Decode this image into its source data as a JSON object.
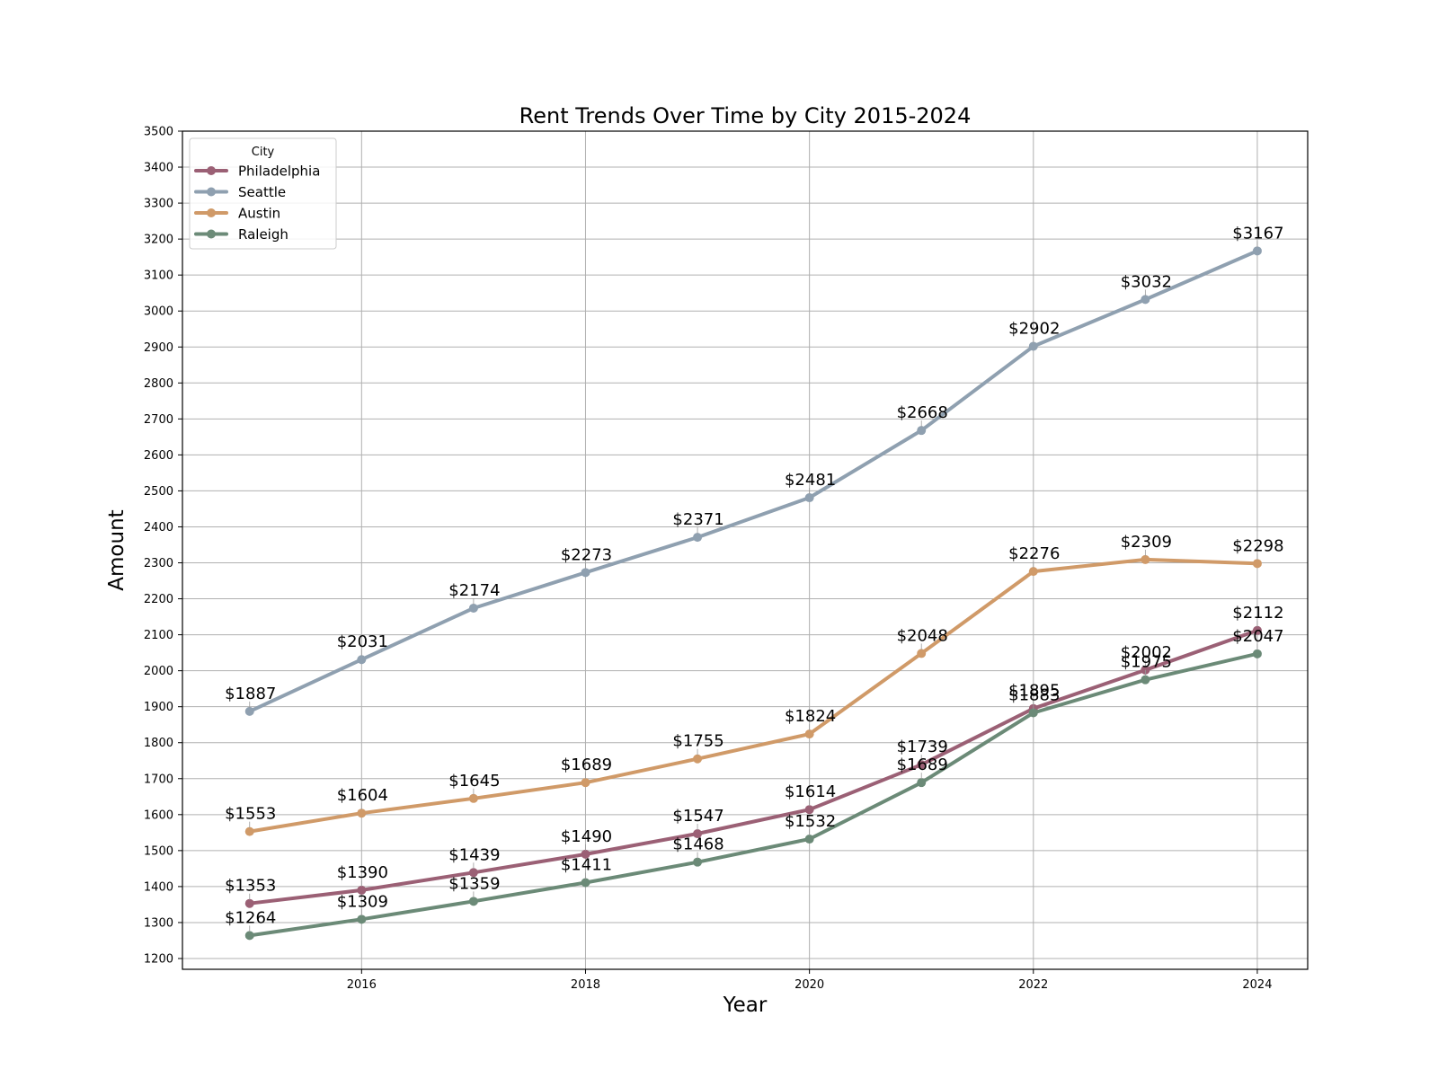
{
  "chart_data": {
    "type": "line",
    "title": "Rent Trends Over Time by City 2015-2024",
    "xlabel": "Year",
    "ylabel": "Amount",
    "x": [
      2015,
      2016,
      2017,
      2018,
      2019,
      2020,
      2021,
      2022,
      2023,
      2024
    ],
    "xticks": [
      2016,
      2018,
      2020,
      2022,
      2024
    ],
    "xlim": [
      2014.4,
      2024.45
    ],
    "yticks": [
      1200,
      1300,
      1400,
      1500,
      1600,
      1700,
      1800,
      1900,
      2000,
      2100,
      2200,
      2300,
      2400,
      2500,
      2600,
      2700,
      2800,
      2900,
      3000,
      3100,
      3200,
      3300,
      3400,
      3500
    ],
    "ylim": [
      1170,
      3500
    ],
    "grid": true,
    "legend": {
      "title": "City",
      "placement": "top-left"
    },
    "value_prefix": "$",
    "series": [
      {
        "name": "Philadelphia",
        "color": "#9b6075",
        "values": [
          1353,
          1390,
          1439,
          1490,
          1547,
          1614,
          1739,
          1895,
          2002,
          2112
        ]
      },
      {
        "name": "Seattle",
        "color": "#8fa0b0",
        "values": [
          1887,
          2031,
          2174,
          2273,
          2371,
          2481,
          2668,
          2902,
          3032,
          3167
        ]
      },
      {
        "name": "Austin",
        "color": "#d09a68",
        "values": [
          1553,
          1604,
          1645,
          1689,
          1755,
          1824,
          2048,
          2276,
          2309,
          2298
        ]
      },
      {
        "name": "Raleigh",
        "color": "#6b8a77",
        "values": [
          1264,
          1309,
          1359,
          1411,
          1468,
          1532,
          1689,
          1883,
          1975,
          2047
        ]
      }
    ]
  }
}
